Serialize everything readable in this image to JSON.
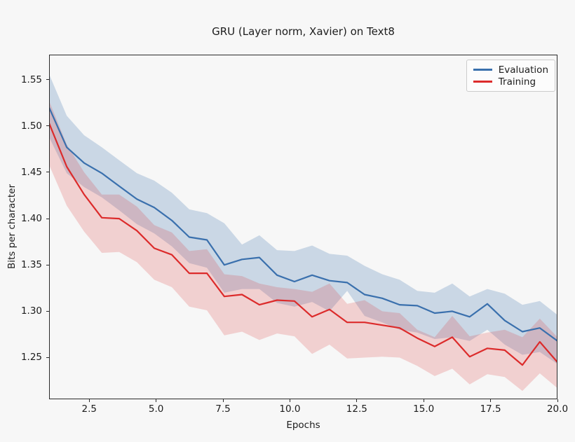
{
  "chart_data": {
    "type": "line",
    "title": "GRU (Layer norm, Xavier) on Text8",
    "xlabel": "Epochs",
    "ylabel": "Bits per character",
    "xlim": [
      1.0,
      20.0
    ],
    "ylim": [
      1.205,
      1.577
    ],
    "grid": false,
    "background": "#f7f7f7",
    "legend": {
      "position": "upper right"
    },
    "xticks": {
      "values": [
        2.5,
        5.0,
        7.5,
        10.0,
        12.5,
        15.0,
        17.5,
        20.0
      ],
      "labels": [
        "2.5",
        "5.0",
        "7.5",
        "10.0",
        "12.5",
        "15.0",
        "17.5",
        "20.0"
      ]
    },
    "yticks": {
      "values": [
        1.25,
        1.3,
        1.35,
        1.4,
        1.45,
        1.5,
        1.55
      ],
      "labels": [
        "1.25",
        "1.30",
        "1.35",
        "1.40",
        "1.45",
        "1.50",
        "1.55"
      ]
    },
    "x": [
      1.0,
      1.66,
      2.31,
      2.97,
      3.62,
      4.28,
      4.93,
      5.59,
      6.24,
      6.9,
      7.55,
      8.21,
      8.86,
      9.52,
      10.17,
      10.83,
      11.48,
      12.14,
      12.79,
      13.45,
      14.1,
      14.76,
      15.41,
      16.07,
      16.72,
      17.38,
      18.03,
      18.69,
      19.34,
      20.0
    ],
    "series": [
      {
        "name": "Evaluation",
        "color": "#3a70ad",
        "band_color": "rgba(58,112,173,0.24)",
        "values": [
          1.52,
          1.477,
          1.46,
          1.449,
          1.435,
          1.421,
          1.412,
          1.398,
          1.38,
          1.377,
          1.35,
          1.356,
          1.358,
          1.339,
          1.332,
          1.339,
          1.333,
          1.331,
          1.318,
          1.314,
          1.307,
          1.306,
          1.298,
          1.3,
          1.294,
          1.308,
          1.29,
          1.278,
          1.282,
          1.268
        ],
        "band_upper": [
          1.556,
          1.511,
          1.49,
          1.477,
          1.463,
          1.449,
          1.441,
          1.428,
          1.41,
          1.406,
          1.395,
          1.372,
          1.382,
          1.366,
          1.365,
          1.371,
          1.362,
          1.36,
          1.349,
          1.34,
          1.334,
          1.322,
          1.32,
          1.33,
          1.316,
          1.324,
          1.319,
          1.307,
          1.311,
          1.296
        ],
        "band_lower": [
          1.488,
          1.449,
          1.434,
          1.423,
          1.409,
          1.394,
          1.384,
          1.37,
          1.352,
          1.347,
          1.32,
          1.324,
          1.324,
          1.309,
          1.305,
          1.31,
          1.3,
          1.322,
          1.295,
          1.288,
          1.28,
          1.277,
          1.27,
          1.272,
          1.268,
          1.28,
          1.264,
          1.253,
          1.256,
          1.243
        ]
      },
      {
        "name": "Training",
        "color": "#dc2b2b",
        "band_color": "rgba(220,43,43,0.19)",
        "values": [
          1.503,
          1.456,
          1.426,
          1.401,
          1.4,
          1.387,
          1.368,
          1.361,
          1.341,
          1.341,
          1.316,
          1.318,
          1.307,
          1.312,
          1.311,
          1.294,
          1.302,
          1.288,
          1.288,
          1.285,
          1.282,
          1.271,
          1.262,
          1.272,
          1.251,
          1.26,
          1.258,
          1.242,
          1.267,
          1.245
        ],
        "band_upper": [
          1.527,
          1.48,
          1.45,
          1.426,
          1.426,
          1.413,
          1.393,
          1.385,
          1.365,
          1.367,
          1.34,
          1.338,
          1.33,
          1.326,
          1.324,
          1.321,
          1.33,
          1.308,
          1.312,
          1.3,
          1.298,
          1.28,
          1.272,
          1.295,
          1.273,
          1.277,
          1.28,
          1.272,
          1.292,
          1.272
        ],
        "band_lower": [
          1.458,
          1.414,
          1.386,
          1.363,
          1.364,
          1.353,
          1.334,
          1.326,
          1.305,
          1.301,
          1.274,
          1.278,
          1.269,
          1.276,
          1.273,
          1.254,
          1.264,
          1.249,
          1.25,
          1.251,
          1.25,
          1.241,
          1.23,
          1.238,
          1.221,
          1.232,
          1.229,
          1.214,
          1.233,
          1.217
        ]
      }
    ]
  }
}
